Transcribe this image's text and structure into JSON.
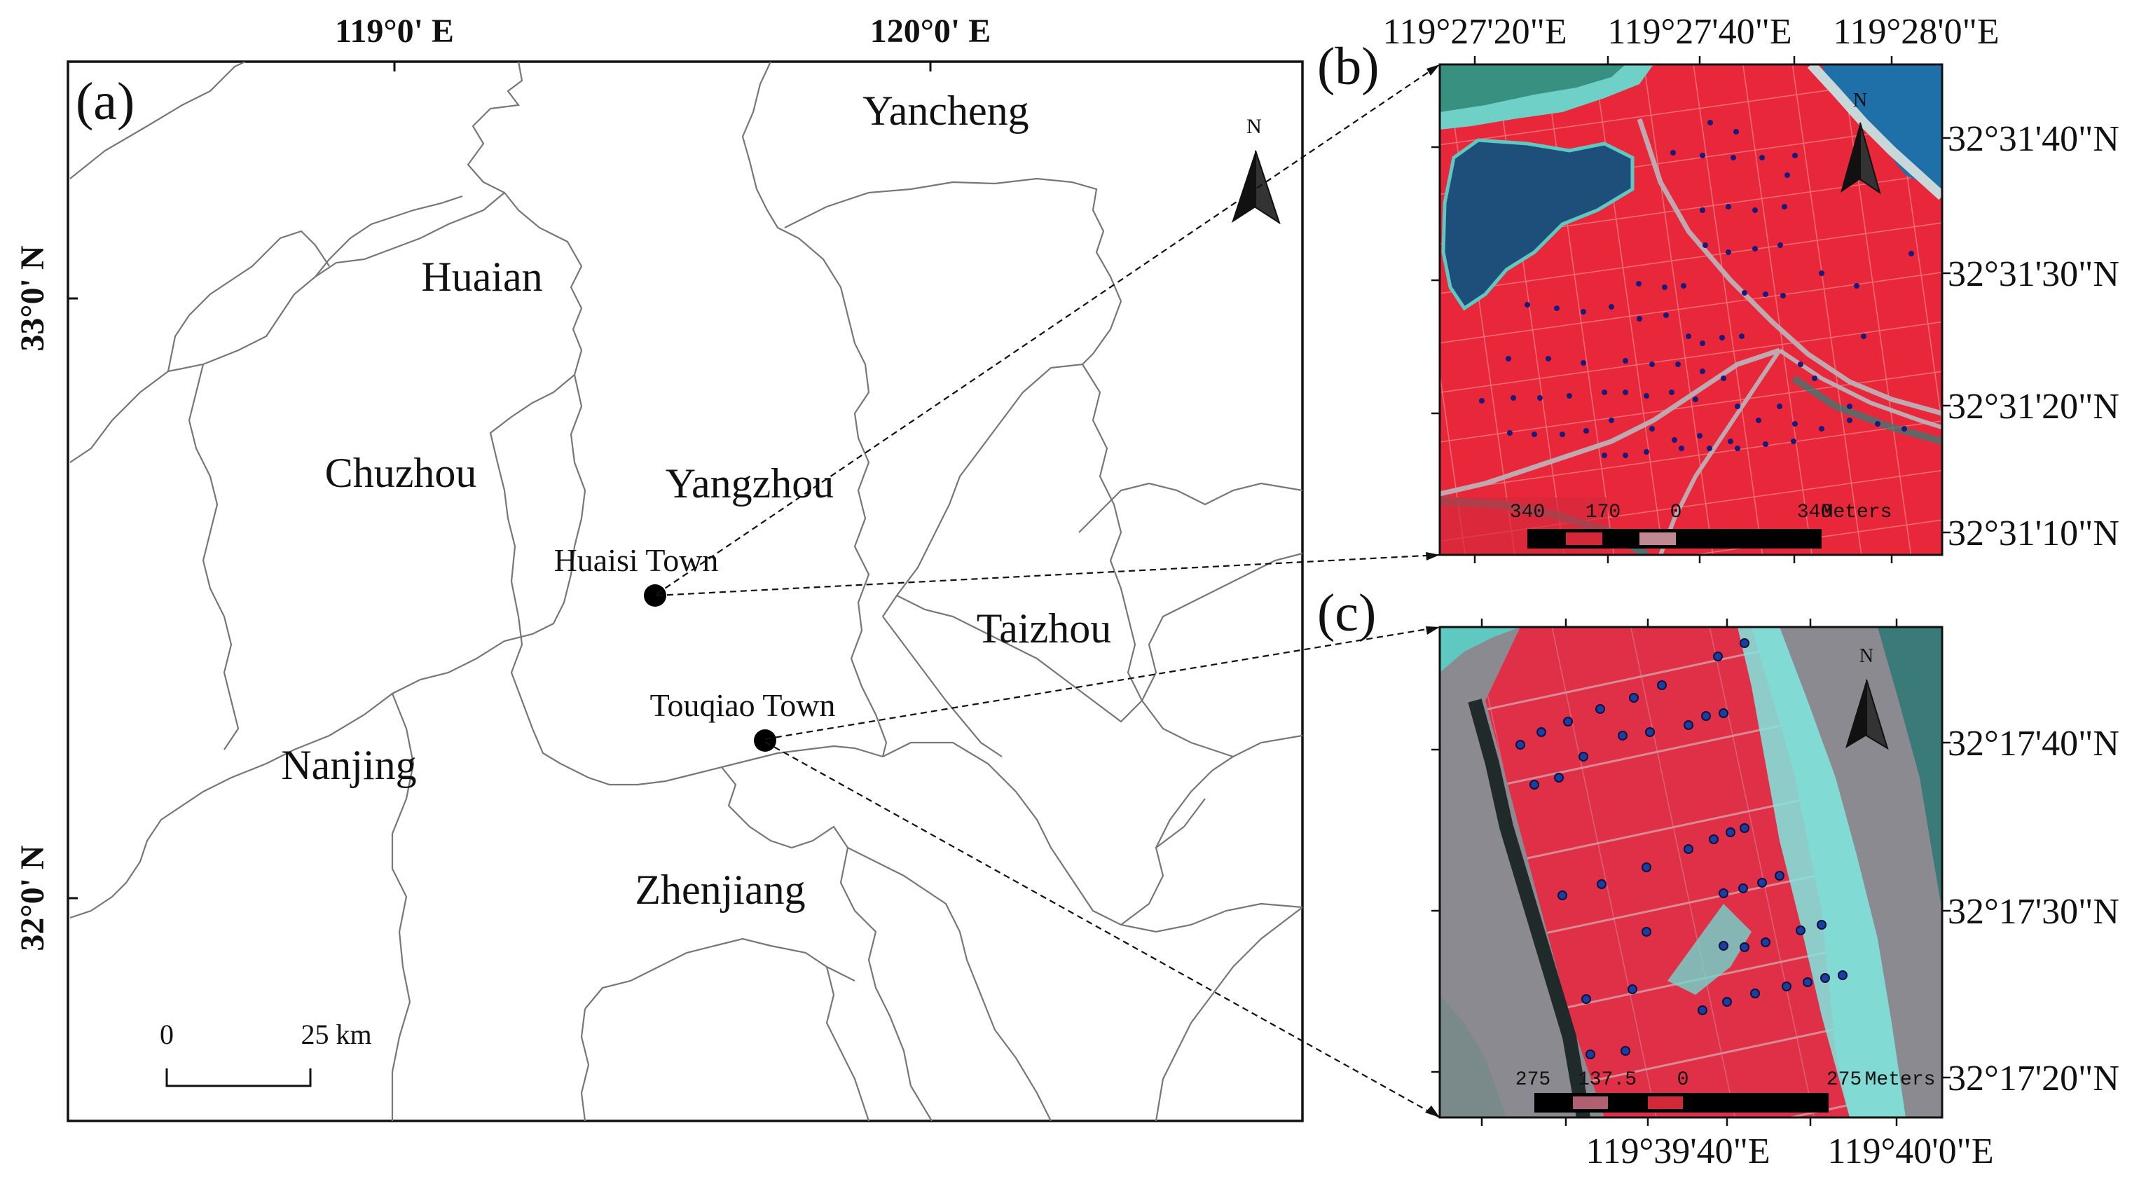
{
  "panels": {
    "a": {
      "label": "(a)",
      "top_ticks": [
        "119°0' E",
        "120°0' E"
      ],
      "left_ticks": [
        "33°0' N",
        "32°0' N"
      ],
      "cities": [
        "Yancheng",
        "Huaian",
        "Chuzhou",
        "Yangzhou",
        "Taizhou",
        "Nanjing",
        "Zhenjiang"
      ],
      "towns": [
        "Huaisi Town",
        "Touqiao Town"
      ],
      "north": "N",
      "scale": {
        "zero": "0",
        "end": "25 km"
      }
    },
    "b": {
      "label": "(b)",
      "top_ticks": [
        "119°27'20\"E",
        "119°27'40\"E",
        "119°28'0\"E"
      ],
      "right_ticks": [
        "32°31'40\"N",
        "32°31'30\"N",
        "32°31'20\"N",
        "32°31'10\"N"
      ],
      "north": "N",
      "scale": {
        "left": "340",
        "mid": "170",
        "zero": "0",
        "right": "340",
        "unit": "Meters"
      }
    },
    "c": {
      "label": "(c)",
      "bottom_ticks": [
        "119°39'40\"E",
        "119°40'0\"E"
      ],
      "right_ticks": [
        "32°17'40\"N",
        "32°17'30\"N",
        "32°17'20\"N"
      ],
      "north": "N",
      "scale": {
        "left": "275",
        "mid": "137.5",
        "zero": "0",
        "right": "275",
        "unit": "Meters"
      }
    }
  },
  "colors": {
    "vegetation_red": "#e8283a",
    "water_blue": "#1f6fa8",
    "sample_point": "#1a1a7a",
    "boundary_gray": "#777777"
  }
}
